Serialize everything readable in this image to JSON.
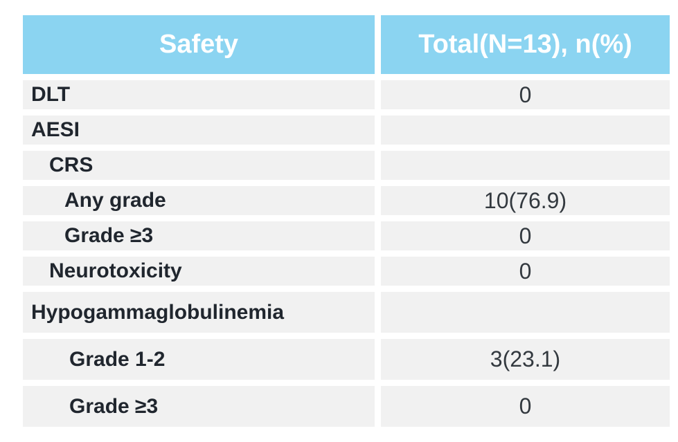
{
  "chart_data": {
    "type": "table",
    "columns": [
      "Safety",
      "Total(N=13), n(%)"
    ],
    "rows": [
      {
        "label": "DLT",
        "indent": 0,
        "value": "0"
      },
      {
        "label": "AESI",
        "indent": 0,
        "value": ""
      },
      {
        "label": "CRS",
        "indent": 1,
        "value": ""
      },
      {
        "label": "Any grade",
        "indent": 2,
        "value": "10(76.9)"
      },
      {
        "label": "Grade ≥3",
        "indent": 2,
        "value": "0"
      },
      {
        "label": "Neurotoxicity",
        "indent": 1,
        "value": "0"
      },
      {
        "label": "Hypogammaglobulinemia",
        "indent": 0,
        "value": ""
      },
      {
        "label": "Grade 1-2",
        "indent": 3,
        "value": "3(23.1)"
      },
      {
        "label": "Grade ≥3",
        "indent": 3,
        "value": "0"
      }
    ],
    "layout_hints": {
      "header_position": "top",
      "grid": "off",
      "row_striping": "uniform-gray-with-white-gutters"
    }
  },
  "colors": {
    "header_bg": "#8BD4F1",
    "header_text": "#FFFFFF",
    "row_bg": "#F1F1F1",
    "label_text": "#20262E",
    "value_text": "#33393F",
    "page_bg": "#FFFFFF"
  }
}
